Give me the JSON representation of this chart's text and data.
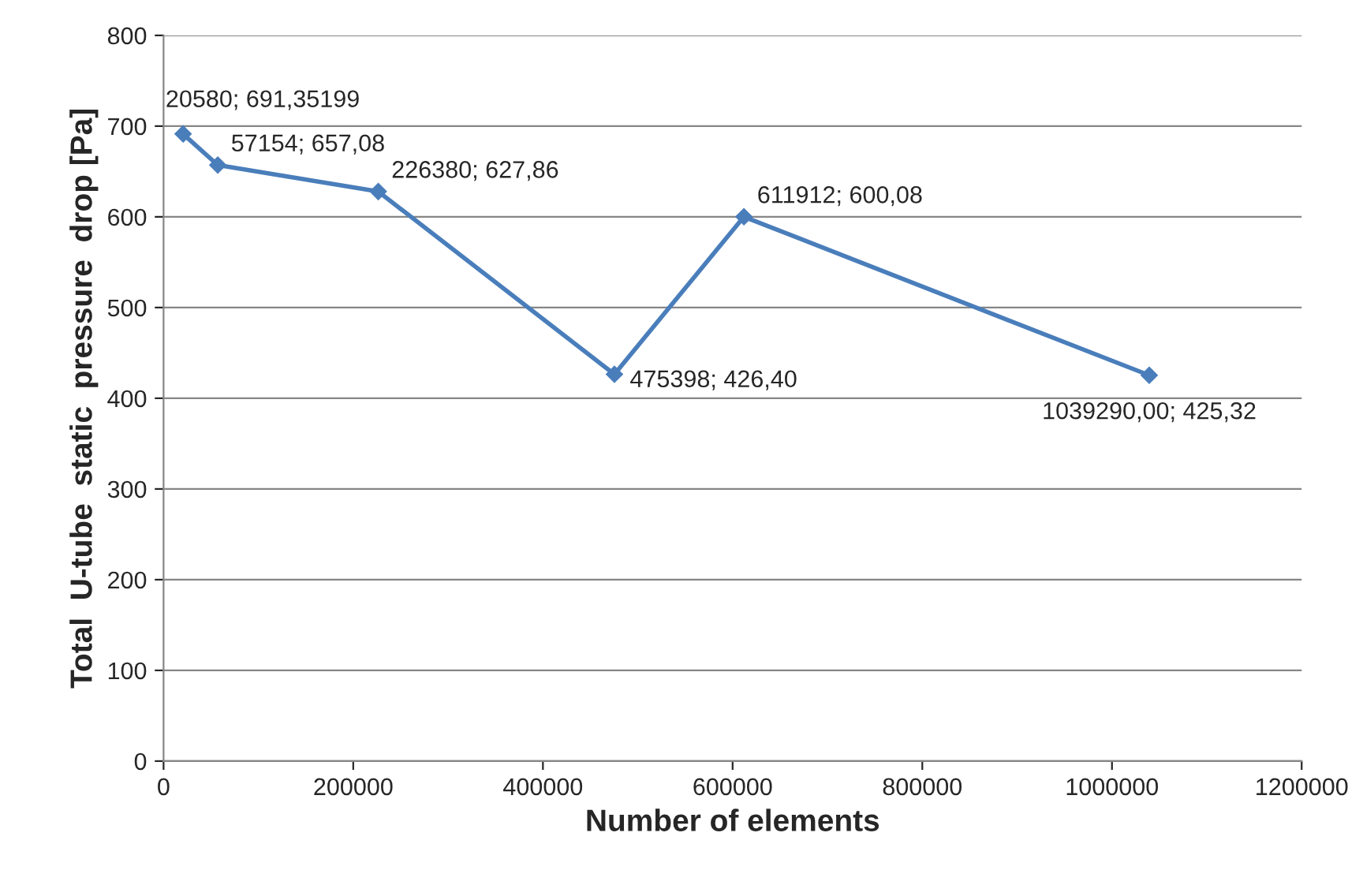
{
  "chart_data": {
    "type": "line",
    "xlabel": "Number of elements",
    "ylabel": "Total  U-tube  static  pressure  drop [Pa]",
    "x": [
      20580,
      57154,
      226380,
      475398,
      611912,
      1039290
    ],
    "series": [
      {
        "color": "#4a7ebb",
        "values": [
          691.35199,
          657.08,
          627.86,
          426.4,
          600.08,
          425.32
        ],
        "value_labels": [
          "20580; 691,35199",
          "57154; 657,08",
          "226380; 627,86",
          "475398; 426,40",
          "611912; 600,08",
          "1039290,00; 425,32"
        ]
      }
    ],
    "xlim": [
      0,
      1200000
    ],
    "xticks": [
      0,
      200000,
      400000,
      600000,
      800000,
      1000000,
      1200000
    ],
    "ylim": [
      0,
      800
    ],
    "yticks": [
      0,
      100,
      200,
      300,
      400,
      500,
      600,
      700,
      800
    ],
    "grid": "y",
    "marker": "diamond",
    "line_style": "solid"
  }
}
